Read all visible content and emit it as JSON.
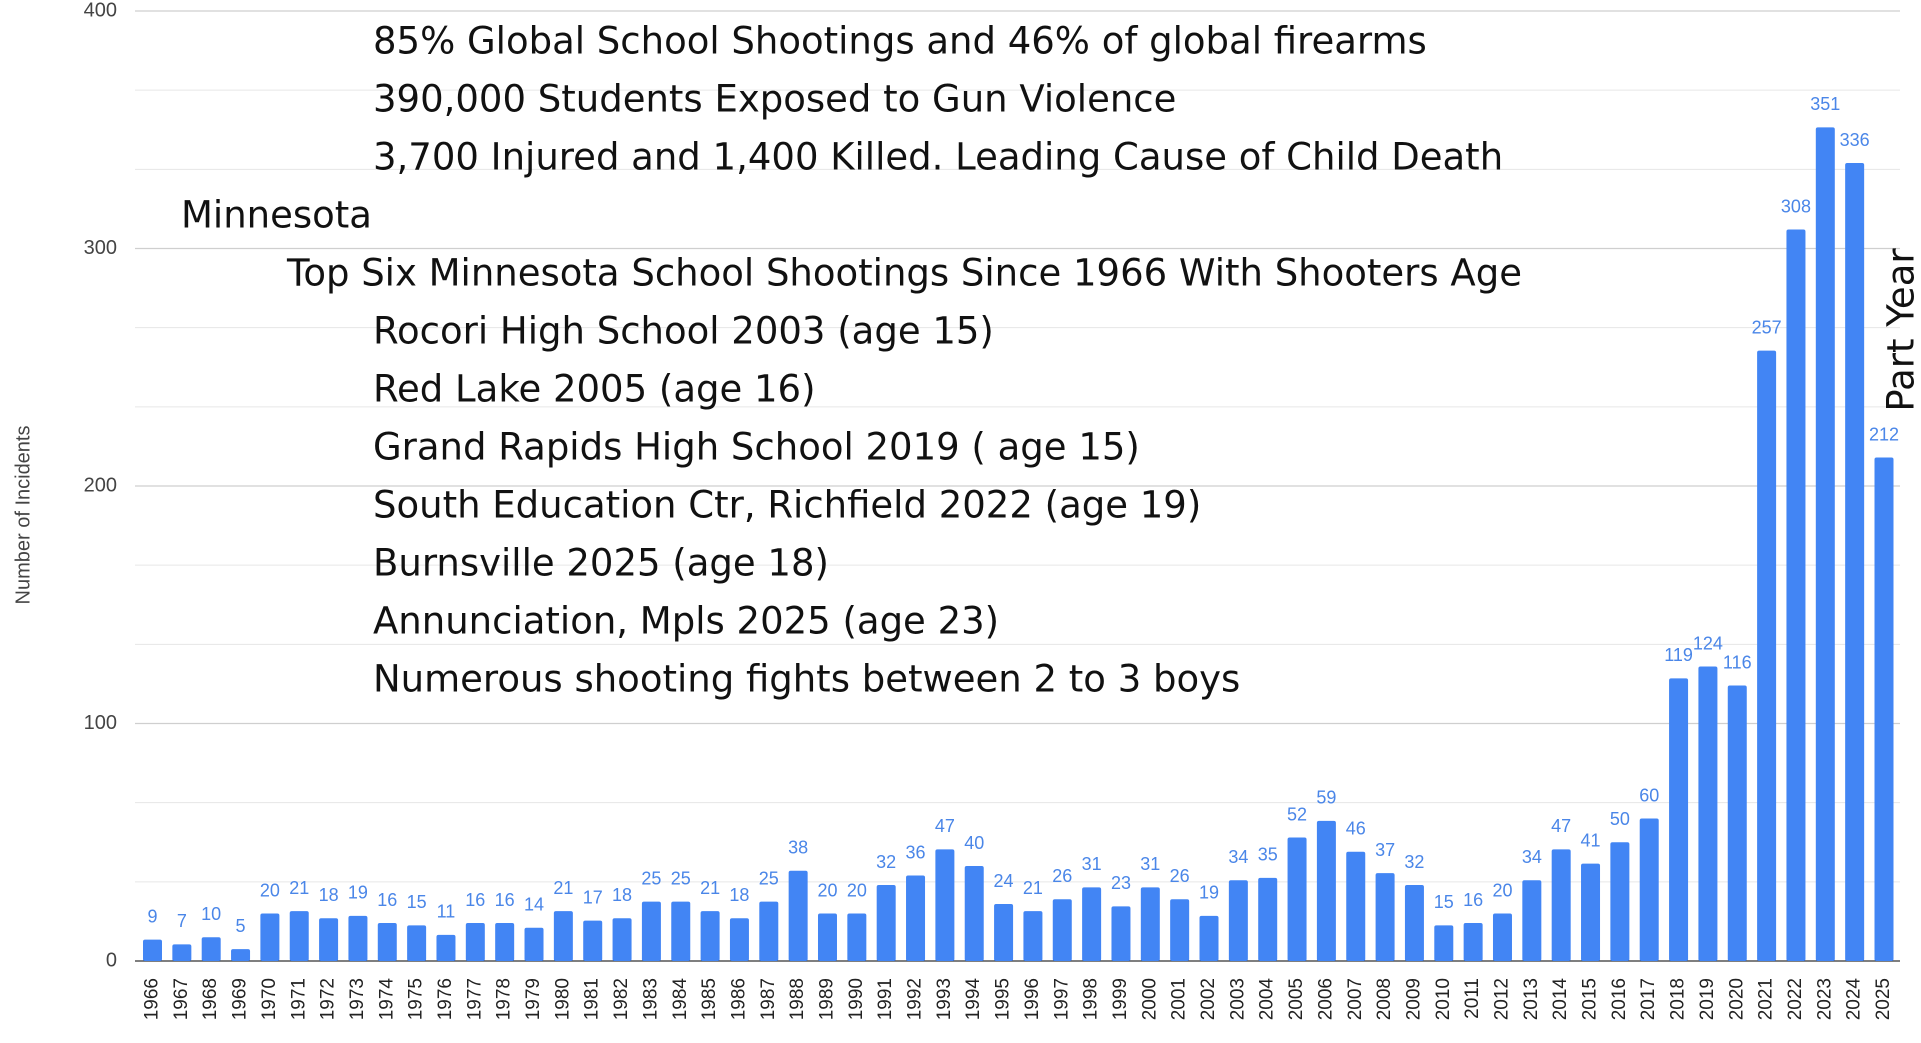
{
  "chart_data": {
    "type": "bar",
    "y_label": "Number of Incidents",
    "categories": [
      "1966",
      "1967",
      "1968",
      "1969",
      "1970",
      "1971",
      "1972",
      "1973",
      "1974",
      "1975",
      "1976",
      "1977",
      "1978",
      "1979",
      "1980",
      "1981",
      "1982",
      "1983",
      "1984",
      "1985",
      "1986",
      "1987",
      "1988",
      "1989",
      "1990",
      "1991",
      "1992",
      "1993",
      "1994",
      "1995",
      "1996",
      "1997",
      "1998",
      "1999",
      "2000",
      "2001",
      "2002",
      "2003",
      "2004",
      "2005",
      "2006",
      "2007",
      "2008",
      "2009",
      "2010",
      "2011",
      "2012",
      "2013",
      "2014",
      "2015",
      "2016",
      "2017",
      "2018",
      "2019",
      "2020",
      "2021",
      "2022",
      "2023",
      "2024",
      "2025"
    ],
    "values": [
      9,
      7,
      10,
      5,
      20,
      21,
      18,
      19,
      16,
      15,
      11,
      16,
      16,
      14,
      21,
      17,
      18,
      25,
      25,
      21,
      18,
      25,
      38,
      20,
      20,
      32,
      36,
      47,
      40,
      24,
      21,
      26,
      31,
      23,
      31,
      26,
      19,
      34,
      35,
      52,
      59,
      46,
      37,
      32,
      15,
      16,
      20,
      34,
      47,
      41,
      50,
      60,
      119,
      124,
      116,
      257,
      308,
      351,
      336,
      212
    ],
    "color": "#4285f4",
    "ylim": [
      0,
      400
    ],
    "yticks": [
      0,
      100,
      200,
      300,
      400
    ],
    "grid": true,
    "annotations": [
      "85% Global School Shootings and 46% of global firearms",
      "390,000 Students Exposed to Gun Violence",
      "3,700 Injured and 1,400 Killed. Leading Cause of Child Death",
      "Minnesota",
      "Top Six Minnesota School Shootings Since 1966 With Shooters Age",
      "Rocori High School 2003 (age 15)",
      "Red Lake 2005 (age 16)",
      "Grand Rapids High School 2019 ( age 15)",
      "South Education Ctr, Richfield 2022 (age 19)",
      "Burnsville 2025 (age 18)",
      "Annunciation, Mpls 2025 (age 23)",
      "Numerous shooting fights between 2 to 3 boys"
    ],
    "bar_annotation": "Part Year"
  }
}
